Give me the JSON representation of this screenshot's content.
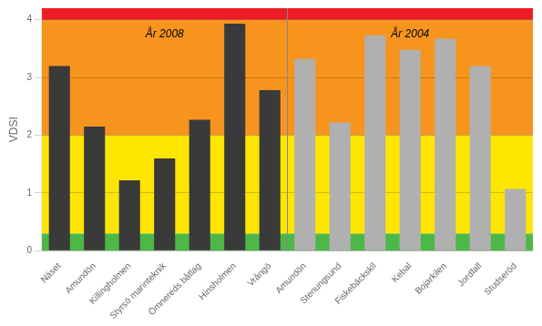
{
  "chart_data": {
    "type": "bar",
    "categories": [
      "Näset",
      "Amundön",
      "Killingholmen",
      "Styrsö marinteknik",
      "Ömnereds båtlag",
      "Hinsholmen",
      "Vrångö",
      "Amundön",
      "Stenungsund",
      "Fiskebäckskil",
      "Kebal",
      "Bojarkilen",
      "Jordfall",
      "Studseröd"
    ],
    "values": [
      3.2,
      2.15,
      1.22,
      1.6,
      2.27,
      3.93,
      2.78,
      3.32,
      2.22,
      3.73,
      3.48,
      3.67,
      3.2,
      1.07
    ],
    "colors": [
      "#3a3a3a",
      "#3a3a3a",
      "#3a3a3a",
      "#3a3a3a",
      "#3a3a3a",
      "#3a3a3a",
      "#3a3a3a",
      "#b0b0b0",
      "#b0b0b0",
      "#b0b0b0",
      "#b0b0b0",
      "#b0b0b0",
      "#b0b0b0",
      "#b0b0b0"
    ],
    "y_label": "VDSI",
    "ylim": [
      0,
      4.2
    ],
    "yticks": [
      0,
      1,
      2,
      3,
      4
    ],
    "grid": true,
    "bands": [
      {
        "from": 0,
        "to": 0.3,
        "color": "#4db848"
      },
      {
        "from": 0.3,
        "to": 2.0,
        "color": "#ffe600"
      },
      {
        "from": 2.0,
        "to": 4.0,
        "color": "#f7941d"
      },
      {
        "from": 4.0,
        "to": 4.2,
        "color": "#ed1c24"
      }
    ],
    "annotations": [
      {
        "text": "År 2008",
        "y": 3.75
      },
      {
        "text": "År 2004",
        "y": 3.75
      }
    ]
  }
}
